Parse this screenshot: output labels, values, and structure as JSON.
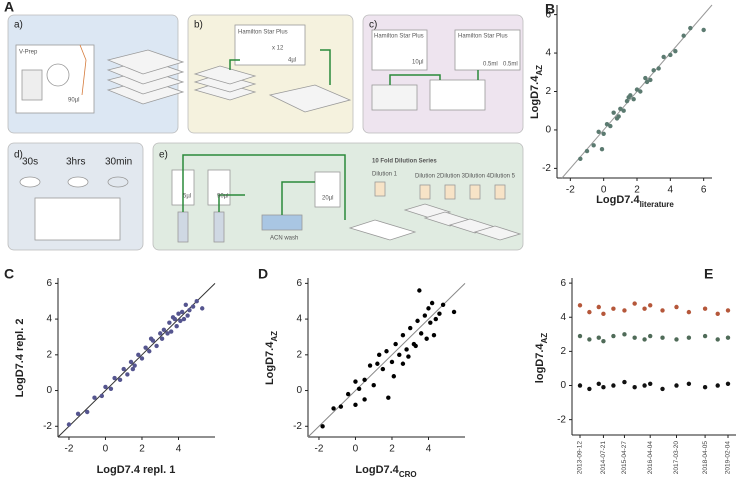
{
  "diagram": {
    "label": "A",
    "a": {
      "tag": "a)",
      "device": "V-Prep",
      "volume": "90µl"
    },
    "b": {
      "tag": "b)",
      "robot": "Hamilton Star Plus",
      "repeat": "x 12",
      "volume": "4µl"
    },
    "c": {
      "tag": "c)",
      "robot1": "Hamilton Star Plus",
      "volume1": "10µl",
      "robot2": "Hamilton Star Plus",
      "vol2": "0.5ml",
      "vol3": "0.5ml"
    },
    "d": {
      "tag": "d)",
      "t1": "30s",
      "t2": "3hrs",
      "t3": "30min"
    },
    "e": {
      "tag": "e)",
      "series_title": "10 Fold Dilution Series",
      "dil1": "Dilution 1",
      "dil2": "Dilution 2",
      "dil3": "Dilution 3",
      "dil4": "Dilution 4",
      "dil5": "Dilution 5",
      "v1": "5µl",
      "v2": "90µl",
      "wash": "ACN wash",
      "v3": "20µl"
    }
  },
  "chart_data": [
    {
      "type": "scatter",
      "title": "B",
      "x_label": "LogD7.4",
      "x_label_sub": "literature",
      "y_label": "LogD7.4",
      "y_label_sub": "AZ",
      "color": "#5b7a70",
      "x": [
        -1.4,
        -1.0,
        -0.6,
        -0.3,
        0,
        0.2,
        0.4,
        0.6,
        0.8,
        1.0,
        1.2,
        1.4,
        1.6,
        1.8,
        2.0,
        2.2,
        2.5,
        2.8,
        3.0,
        3.3,
        3.6,
        4.0,
        4.3,
        4.8,
        5.2,
        6.0,
        -0.1,
        0.9,
        1.5,
        2.6
      ],
      "values": [
        -1.5,
        -1.1,
        -0.8,
        -0.1,
        -0.2,
        0.3,
        0.2,
        0.9,
        0.6,
        1.1,
        1.0,
        1.5,
        1.8,
        1.6,
        2.1,
        2.0,
        2.7,
        2.6,
        3.1,
        3.2,
        3.8,
        3.9,
        4.1,
        4.9,
        5.3,
        5.2,
        -1.0,
        0.7,
        1.7,
        2.5
      ],
      "xlim": [
        -2.8,
        6.5
      ],
      "ylim": [
        -2.5,
        6.5
      ],
      "xticks": [
        -2,
        0,
        2,
        4,
        6
      ],
      "yticks": [
        -2,
        0,
        2,
        4,
        6
      ]
    },
    {
      "type": "scatter",
      "title": "C",
      "x_label": "LogD7.4 repl. 1",
      "y_label": "LogD7.4 repl. 2",
      "color": "#55558f",
      "x": [
        -2.0,
        -1.5,
        -1.0,
        -0.6,
        -0.2,
        0,
        0.3,
        0.5,
        0.8,
        1.0,
        1.2,
        1.4,
        1.6,
        1.8,
        2.0,
        2.2,
        2.4,
        2.6,
        2.8,
        3.0,
        3.1,
        3.2,
        3.4,
        3.5,
        3.6,
        3.8,
        3.9,
        4.0,
        4.1,
        4.2,
        4.3,
        4.4,
        4.5,
        4.6,
        4.8,
        5.0,
        5.3,
        2.5,
        1.5,
        3.7
      ],
      "values": [
        -1.9,
        -1.3,
        -1.2,
        -0.4,
        -0.3,
        0.2,
        0.1,
        0.7,
        0.6,
        1.2,
        0.9,
        1.6,
        1.4,
        2.0,
        1.8,
        2.4,
        2.2,
        2.8,
        2.5,
        3.2,
        2.9,
        3.4,
        3.2,
        3.8,
        3.3,
        4.0,
        3.6,
        4.3,
        3.9,
        4.4,
        4.0,
        4.8,
        4.2,
        4.5,
        4.7,
        5.0,
        4.6,
        2.9,
        1.2,
        4.1
      ],
      "xlim": [
        -2.6,
        6.0
      ],
      "ylim": [
        -2.6,
        6.3
      ],
      "xticks": [
        -2,
        0,
        2,
        4
      ],
      "yticks": [
        -2,
        0,
        2,
        4,
        6
      ]
    },
    {
      "type": "scatter",
      "title": "D",
      "x_label": "LogD7.4",
      "x_label_sub": "CRO",
      "y_label": "LogD7.4",
      "y_label_sub": "AZ",
      "color": "#000000",
      "x": [
        -1.8,
        -1.2,
        -0.8,
        -0.4,
        0,
        0.2,
        0.5,
        0.8,
        1.0,
        1.2,
        1.5,
        1.7,
        2.0,
        2.2,
        2.4,
        2.6,
        2.8,
        3.0,
        3.2,
        3.4,
        3.5,
        3.6,
        3.8,
        4.0,
        4.1,
        4.2,
        4.4,
        4.6,
        4.8,
        5.4,
        0.5,
        1.3,
        2.1,
        2.9,
        3.3,
        4.3,
        1.8,
        2.6,
        3.9,
        0.0
      ],
      "values": [
        -2.0,
        -1.0,
        -0.9,
        -0.2,
        0.5,
        0.1,
        0.6,
        1.4,
        0.3,
        1.5,
        1.2,
        2.2,
        1.6,
        2.6,
        2.0,
        3.1,
        2.3,
        3.5,
        2.6,
        3.9,
        5.6,
        3.2,
        4.2,
        4.6,
        3.8,
        4.9,
        4.0,
        4.3,
        4.8,
        4.4,
        -0.5,
        2.0,
        0.8,
        1.9,
        2.5,
        3.1,
        -0.4,
        1.5,
        2.9,
        -0.8
      ],
      "xlim": [
        -2.6,
        6.0
      ],
      "ylim": [
        -2.6,
        6.3
      ],
      "xticks": [
        -2,
        0,
        2,
        4
      ],
      "yticks": [
        -2,
        0,
        2,
        4,
        6
      ]
    },
    {
      "type": "scatter",
      "title": "E",
      "y_label": "logD7.4",
      "y_label_sub": "AZ",
      "x": [
        "2013-09-12",
        "2014-01-15",
        "2014-05-20",
        "2014-07-21",
        "2014-12-01",
        "2015-04-27",
        "2015-09-10",
        "2016-01-20",
        "2016-04-04",
        "2016-09-15",
        "2017-03-20",
        "2017-09-01",
        "2018-04-05",
        "2018-09-20",
        "2019-02-04"
      ],
      "series": [
        {
          "color": "#b5573a",
          "values": [
            4.7,
            4.3,
            4.6,
            4.2,
            4.5,
            4.4,
            4.8,
            4.5,
            4.7,
            4.4,
            4.6,
            4.3,
            4.5,
            4.2,
            4.4
          ]
        },
        {
          "color": "#4f6b58",
          "values": [
            2.9,
            2.7,
            2.8,
            2.6,
            2.9,
            3.0,
            2.8,
            2.7,
            2.9,
            2.8,
            2.7,
            2.8,
            2.9,
            2.7,
            2.8
          ]
        },
        {
          "color": "#111111",
          "values": [
            0.0,
            -0.2,
            0.1,
            -0.1,
            0.0,
            0.2,
            -0.1,
            0.0,
            0.1,
            -0.2,
            0.0,
            0.1,
            -0.1,
            0.0,
            0.1
          ]
        }
      ],
      "xlim": [
        "2013-09-12",
        "2019-02-04"
      ],
      "ylim": [
        -2.9,
        6.3
      ],
      "xticks": [
        "2013-09-12",
        "2014-07-21",
        "2015-04-27",
        "2016-04-04",
        "2017-03-20",
        "2018-04-05",
        "2019-02-04"
      ],
      "yticks": [
        -2,
        0,
        2,
        4,
        6
      ]
    }
  ]
}
